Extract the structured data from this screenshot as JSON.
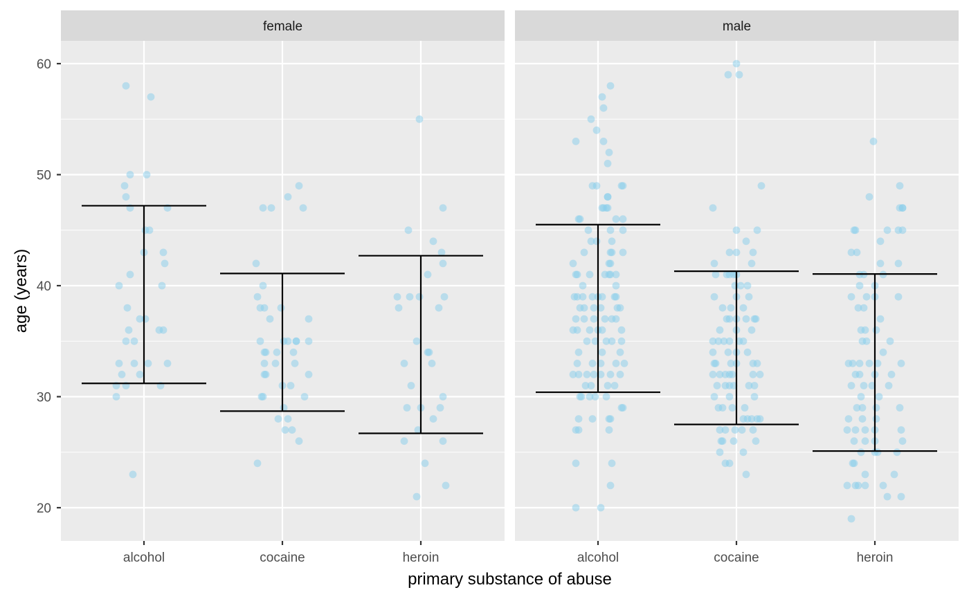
{
  "chart_data": {
    "type": "scatter",
    "subtype": "faceted jitter with mean ± SD error bars",
    "xlabel": "primary substance of abuse",
    "ylabel": "age (years)",
    "ylim": [
      17,
      62
    ],
    "yticks": [
      20,
      30,
      40,
      50,
      60
    ],
    "categories": [
      "alcohol",
      "cocaine",
      "heroin"
    ],
    "grid": true,
    "colors": {
      "panel_bg": "#ebebeb",
      "strip_bg": "#d9d9d9",
      "grid": "#ffffff",
      "point": "#87ceeb",
      "errorbar": "#000000"
    },
    "facets": [
      {
        "label": "female",
        "groups": [
          {
            "category": "alcohol",
            "errorbar": {
              "lower": 31.2,
              "upper": 47.2
            },
            "ages": [
              58,
              57,
              50,
              50,
              49,
              48,
              47,
              47,
              45,
              45,
              43,
              43,
              42,
              41,
              40,
              40,
              38,
              37,
              37,
              36,
              36,
              36,
              35,
              35,
              33,
              33,
              33,
              33,
              32,
              32,
              31,
              31,
              31,
              30,
              23
            ],
            "jitter": [
              -0.13,
              0.05,
              -0.1,
              0.02,
              -0.14,
              -0.13,
              -0.1,
              0.17,
              0.01,
              0.04,
              0.0,
              0.14,
              0.15,
              -0.1,
              -0.18,
              0.13,
              -0.12,
              -0.03,
              0.01,
              -0.11,
              0.11,
              0.14,
              -0.13,
              -0.07,
              -0.18,
              -0.07,
              0.03,
              0.17,
              -0.16,
              -0.03,
              -0.2,
              -0.13,
              0.12,
              -0.2,
              -0.08
            ]
          },
          {
            "category": "cocaine",
            "errorbar": {
              "lower": 28.7,
              "upper": 41.1
            },
            "ages": [
              49,
              48,
              47,
              47,
              47,
              42,
              40,
              39,
              38,
              38,
              38,
              37,
              37,
              35,
              35,
              35,
              35,
              35,
              35,
              34,
              34,
              34,
              34,
              33,
              33,
              33,
              32,
              32,
              32,
              31,
              31,
              30,
              30,
              30,
              29,
              28,
              28,
              27,
              27,
              26,
              24
            ],
            "jitter": [
              0.12,
              0.04,
              -0.14,
              -0.08,
              0.15,
              -0.19,
              -0.14,
              -0.18,
              -0.16,
              -0.13,
              -0.01,
              -0.09,
              0.19,
              -0.16,
              0.01,
              0.04,
              0.1,
              0.1,
              0.19,
              -0.13,
              -0.12,
              -0.04,
              0.08,
              -0.13,
              -0.05,
              0.09,
              -0.13,
              -0.12,
              0.19,
              0.0,
              0.06,
              -0.15,
              -0.14,
              0.16,
              0.01,
              -0.03,
              0.04,
              0.02,
              0.07,
              0.12,
              -0.18
            ]
          },
          {
            "category": "heroin",
            "errorbar": {
              "lower": 26.7,
              "upper": 42.7
            },
            "ages": [
              55,
              47,
              45,
              44,
              43,
              42,
              41,
              39,
              39,
              39,
              39,
              38,
              38,
              35,
              34,
              34,
              33,
              33,
              31,
              30,
              29,
              29,
              29,
              28,
              27,
              26,
              26,
              24,
              22,
              21
            ],
            "jitter": [
              -0.01,
              0.16,
              -0.09,
              0.09,
              0.15,
              0.16,
              0.05,
              -0.17,
              -0.08,
              -0.01,
              0.17,
              -0.16,
              0.13,
              -0.03,
              0.05,
              0.06,
              -0.12,
              0.08,
              -0.07,
              0.16,
              -0.1,
              0.0,
              0.14,
              0.09,
              -0.02,
              -0.12,
              0.16,
              0.03,
              0.18,
              -0.03
            ]
          }
        ]
      },
      {
        "label": "male",
        "groups": [
          {
            "category": "alcohol",
            "errorbar": {
              "lower": 30.4,
              "upper": 45.5
            },
            "ages": [
              58,
              57,
              56,
              55,
              54,
              53,
              53,
              52,
              51,
              49,
              49,
              49,
              49,
              48,
              48,
              47,
              47,
              47,
              47,
              46,
              46,
              46,
              46,
              45,
              45,
              45,
              44,
              44,
              44,
              43,
              43,
              43,
              43,
              42,
              42,
              42,
              41,
              41,
              41,
              41,
              41,
              41,
              41,
              40,
              40,
              39,
              39,
              39,
              39,
              39,
              39,
              39,
              39,
              38,
              38,
              38,
              38,
              38,
              38,
              37,
              37,
              37,
              37,
              37,
              37,
              36,
              36,
              36,
              36,
              36,
              36,
              35,
              35,
              35,
              35,
              35,
              34,
              34,
              34,
              33,
              33,
              33,
              33,
              33,
              32,
              32,
              32,
              32,
              32,
              32,
              32,
              31,
              31,
              31,
              31,
              30,
              30,
              30,
              30,
              30,
              29,
              29,
              28,
              28,
              28,
              28,
              27,
              27,
              27,
              24,
              24,
              22,
              20,
              20
            ],
            "jitter": [
              0.09,
              0.03,
              0.04,
              -0.05,
              -0.01,
              -0.16,
              0.04,
              0.08,
              0.07,
              -0.04,
              -0.01,
              0.17,
              0.18,
              0.07,
              0.07,
              0.03,
              0.04,
              0.06,
              0.07,
              -0.14,
              -0.13,
              0.13,
              0.18,
              0.09,
              0.18,
              -0.07,
              -0.05,
              -0.01,
              0.1,
              -0.1,
              0.09,
              0.1,
              0.18,
              -0.18,
              0.08,
              0.09,
              -0.16,
              -0.15,
              -0.06,
              0.05,
              0.08,
              0.09,
              0.13,
              -0.11,
              0.13,
              -0.17,
              -0.15,
              -0.11,
              0.0,
              -0.04,
              0.03,
              0.12,
              0.13,
              -0.13,
              -0.1,
              -0.03,
              0.02,
              0.14,
              0.16,
              -0.16,
              -0.1,
              -0.03,
              0.05,
              0.1,
              0.13,
              -0.18,
              -0.15,
              -0.06,
              0.0,
              0.03,
              0.17,
              -0.08,
              -0.02,
              0.06,
              0.1,
              0.17,
              -0.14,
              0.03,
              0.16,
              -0.15,
              -0.04,
              0.02,
              0.13,
              0.19,
              -0.18,
              -0.14,
              -0.08,
              -0.03,
              0.02,
              0.09,
              0.16,
              -0.09,
              -0.05,
              0.07,
              0.12,
              -0.13,
              -0.12,
              -0.06,
              -0.02,
              0.06,
              0.17,
              0.18,
              -0.14,
              -0.04,
              0.08,
              0.09,
              -0.16,
              -0.14,
              0.08,
              -0.16,
              0.1,
              0.09,
              -0.16,
              0.02
            ],
            "note": "approximate jittered values"
          },
          {
            "category": "cocaine",
            "errorbar": {
              "lower": 27.5,
              "upper": 41.3
            },
            "ages": [
              60,
              59,
              59,
              49,
              47,
              45,
              45,
              44,
              43,
              43,
              43,
              42,
              42,
              41,
              41,
              41,
              41,
              41,
              40,
              40,
              40,
              39,
              39,
              39,
              38,
              38,
              38,
              37,
              37,
              37,
              37,
              37,
              37,
              36,
              36,
              36,
              35,
              35,
              35,
              35,
              35,
              35,
              34,
              34,
              34,
              34,
              33,
              33,
              33,
              33,
              33,
              33,
              32,
              32,
              32,
              32,
              32,
              32,
              32,
              31,
              31,
              31,
              31,
              31,
              31,
              30,
              30,
              30,
              29,
              29,
              29,
              29,
              28,
              28,
              28,
              28,
              28,
              27,
              27,
              27,
              27,
              27,
              26,
              26,
              26,
              26,
              25,
              25,
              24,
              24,
              23
            ],
            "jitter": [
              0.0,
              -0.06,
              0.02,
              0.18,
              -0.17,
              0.0,
              0.15,
              0.07,
              -0.05,
              0.0,
              0.12,
              -0.16,
              0.11,
              -0.15,
              -0.07,
              -0.05,
              -0.02,
              0.0,
              -0.01,
              0.03,
              0.08,
              -0.16,
              0.0,
              0.09,
              -0.1,
              -0.04,
              0.05,
              -0.07,
              -0.05,
              0.0,
              0.07,
              0.13,
              0.14,
              -0.12,
              0.0,
              0.11,
              -0.17,
              -0.13,
              -0.09,
              -0.05,
              0.02,
              0.05,
              -0.17,
              -0.06,
              0.0,
              0.08,
              -0.16,
              -0.15,
              -0.04,
              0.0,
              0.12,
              0.15,
              -0.17,
              -0.12,
              -0.08,
              -0.05,
              -0.03,
              0.12,
              0.17,
              -0.14,
              -0.08,
              -0.05,
              -0.02,
              0.09,
              0.13,
              -0.16,
              -0.05,
              0.13,
              -0.13,
              -0.1,
              -0.03,
              0.06,
              0.05,
              0.08,
              0.11,
              0.15,
              0.17,
              -0.12,
              -0.08,
              -0.01,
              0.04,
              0.12,
              -0.11,
              -0.1,
              -0.02,
              0.14,
              -0.12,
              0.05,
              -0.08,
              -0.05,
              0.07
            ],
            "note": "approximate jittered values"
          },
          {
            "category": "heroin",
            "errorbar": {
              "lower": 25.1,
              "upper": 41.05
            },
            "ages": [
              53,
              49,
              48,
              47,
              47,
              47,
              45,
              45,
              45,
              45,
              45,
              44,
              43,
              43,
              42,
              42,
              41,
              41,
              41,
              40,
              40,
              39,
              39,
              39,
              39,
              38,
              38,
              37,
              36,
              36,
              36,
              35,
              35,
              35,
              34,
              33,
              33,
              33,
              33,
              33,
              33,
              32,
              32,
              32,
              32,
              31,
              31,
              31,
              31,
              30,
              30,
              29,
              29,
              29,
              29,
              28,
              28,
              28,
              27,
              27,
              27,
              27,
              27,
              26,
              26,
              26,
              26,
              25,
              25,
              25,
              25,
              24,
              24,
              23,
              23,
              22,
              22,
              22,
              22,
              22,
              21,
              21,
              19
            ],
            "jitter": [
              -0.01,
              0.18,
              -0.04,
              0.18,
              0.2,
              0.2,
              -0.15,
              -0.14,
              0.09,
              0.17,
              0.2,
              0.04,
              -0.17,
              -0.13,
              0.04,
              0.17,
              -0.11,
              -0.08,
              0.06,
              -0.11,
              0.0,
              -0.17,
              -0.06,
              0.0,
              0.17,
              -0.12,
              -0.08,
              0.04,
              -0.1,
              -0.07,
              0.01,
              -0.09,
              -0.06,
              0.11,
              0.06,
              -0.19,
              -0.16,
              -0.11,
              -0.04,
              0.02,
              0.19,
              -0.14,
              -0.11,
              0.0,
              0.12,
              -0.17,
              -0.08,
              -0.02,
              0.1,
              -0.1,
              0.03,
              -0.13,
              -0.09,
              0.01,
              0.18,
              -0.19,
              -0.09,
              0.01,
              -0.2,
              -0.14,
              -0.07,
              0.0,
              0.19,
              -0.15,
              -0.07,
              0.0,
              0.2,
              -0.1,
              0.0,
              0.02,
              0.16,
              -0.16,
              -0.15,
              -0.07,
              0.14,
              -0.2,
              -0.14,
              -0.12,
              -0.07,
              0.06,
              0.09,
              0.19,
              -0.17
            ],
            "note": "approximate jittered values"
          }
        ]
      }
    ]
  }
}
